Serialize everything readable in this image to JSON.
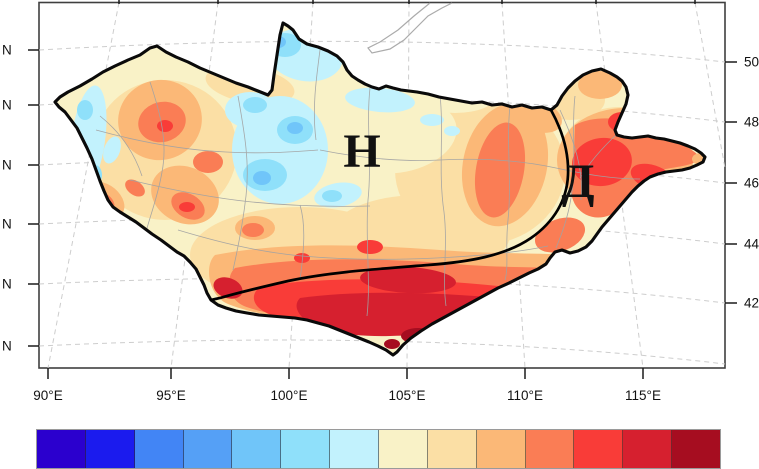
{
  "axes": {
    "bottom": [
      "90°E",
      "95°E",
      "100°E",
      "105°E",
      "110°E",
      "115°E"
    ],
    "right": [
      "50",
      "48",
      "46",
      "44",
      "42"
    ],
    "left": [
      "N",
      "N",
      "N",
      "N",
      "N",
      "N"
    ]
  },
  "annotations": [
    {
      "text": "Н",
      "color": "#000000"
    },
    {
      "text": "Д",
      "color": "#ee1100"
    }
  ],
  "colorbar": {
    "colors": [
      "#2B00CE",
      "#1B1BEE",
      "#4285F5",
      "#55A0F6",
      "#70C5F9",
      "#8FE0FA",
      "#C2F2FD",
      "#F9F2C7",
      "#FBDFA5",
      "#FBB877",
      "#FA7D55",
      "#F93C38",
      "#D6202F",
      "#A60D20"
    ]
  },
  "chart_data": {
    "type": "heatmap",
    "title": "",
    "x_tick_labels": [
      "90°E",
      "95°E",
      "100°E",
      "105°E",
      "110°E",
      "115°E"
    ],
    "y_tick_labels_right": [
      "50",
      "48",
      "46",
      "44",
      "42"
    ],
    "y_tick_labels_left": [
      "N",
      "N",
      "N",
      "N",
      "N",
      "N"
    ],
    "annotations": [
      "Н",
      "Д"
    ],
    "legend_position": "bottom",
    "grid": "dashed graticule",
    "palette": [
      "#2B00CE",
      "#1B1BEE",
      "#4285F5",
      "#55A0F6",
      "#70C5F9",
      "#8FE0FA",
      "#C2F2FD",
      "#F9F2C7",
      "#FBDFA5",
      "#FBB877",
      "#FA7D55",
      "#F93C38",
      "#D6202F",
      "#A60D20"
    ]
  }
}
